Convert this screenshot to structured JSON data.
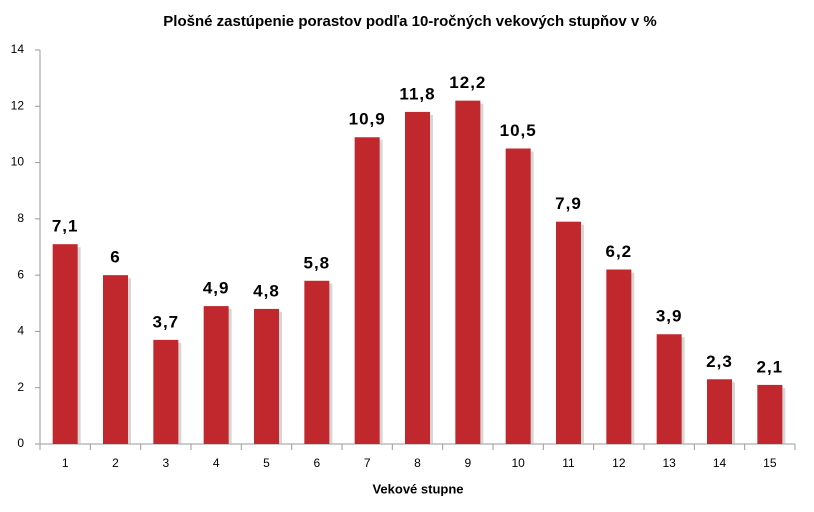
{
  "chart_data": {
    "type": "bar",
    "title": "Plošné zastúpenie porastov podľa 10-ročných vekových stupňov v %",
    "x_label": "Vekové stupne",
    "categories": [
      "1",
      "2",
      "3",
      "4",
      "5",
      "6",
      "7",
      "8",
      "9",
      "10",
      "11",
      "12",
      "13",
      "14",
      "15"
    ],
    "values": [
      7.1,
      6,
      3.7,
      4.9,
      4.8,
      5.8,
      10.9,
      11.8,
      12.2,
      10.5,
      7.9,
      6.2,
      3.9,
      2.3,
      2.1
    ],
    "value_labels": [
      "7,1",
      "6",
      "3,7",
      "4,9",
      "4,8",
      "5,8",
      "10,9",
      "11,8",
      "12,2",
      "10,5",
      "7,9",
      "6,2",
      "3,9",
      "2,3",
      "2,1"
    ],
    "color": "#c0282d",
    "ylim": [
      0,
      14
    ],
    "yticks": [
      0,
      2,
      4,
      6,
      8,
      10,
      12,
      14
    ],
    "grid": false
  }
}
